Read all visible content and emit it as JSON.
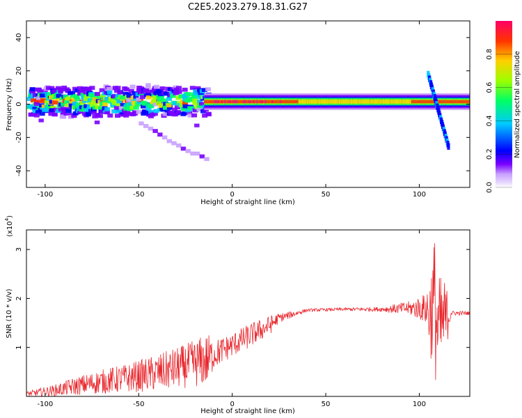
{
  "figure": {
    "title": "C2E5.2023.279.18.31.G27"
  },
  "chart_data": [
    {
      "type": "heatmap",
      "xlabel": "Height of straight line (km)",
      "ylabel": "Frequency (Hz)",
      "xlim": [
        -110,
        127
      ],
      "ylim": [
        -50,
        50
      ],
      "x_ticks": [
        -100,
        -50,
        0,
        50,
        100
      ],
      "y_ticks": [
        -40,
        -20,
        0,
        20,
        40
      ],
      "colorbar": {
        "label": "Normalized spectral amplitude",
        "range": [
          0,
          1
        ],
        "ticks": [
          "0.0",
          "0.2",
          "0.4",
          "0.6",
          "0.8"
        ],
        "colormap": [
          "#ffffff",
          "#c8a0ff",
          "#7a00ff",
          "#0000ff",
          "#00c8ff",
          "#00ff66",
          "#9bff00",
          "#ffd000",
          "#ff3300",
          "#ff0066"
        ]
      },
      "ridge_center_freq_hz": 1.5,
      "features": [
        {
          "x_range": [
            -110,
            -15
          ],
          "freq_range": [
            -10,
            15
          ],
          "note": "scattered"
        },
        {
          "x_range": [
            -15,
            127
          ],
          "freq_range": [
            -3,
            5
          ],
          "note": "coherent band"
        },
        {
          "x_range": [
            105,
            115
          ],
          "freq_range": [
            -25,
            18
          ],
          "note": "diagonal streak"
        },
        {
          "x_range": [
            -50,
            -15
          ],
          "freq_range": [
            -35,
            -10
          ],
          "note": "faint tail"
        }
      ]
    },
    {
      "type": "line",
      "xlabel": "Height of straight line (km)",
      "ylabel": "SNR (10 * v/v)",
      "y_multiplier": "(x10",
      "y_multiplier_exp": "4",
      "y_multiplier_close": ")",
      "xlim": [
        -110,
        127
      ],
      "ylim": [
        0,
        3.4
      ],
      "x_ticks": [
        -100,
        -50,
        0,
        50,
        100
      ],
      "y_ticks": [
        1,
        2,
        3
      ],
      "color": "#e8262c",
      "envelope": [
        {
          "x": -110,
          "mean": 0.05,
          "spread": 0.05
        },
        {
          "x": -95,
          "mean": 0.12,
          "spread": 0.12
        },
        {
          "x": -85,
          "mean": 0.2,
          "spread": 0.18
        },
        {
          "x": -70,
          "mean": 0.3,
          "spread": 0.25
        },
        {
          "x": -55,
          "mean": 0.38,
          "spread": 0.3
        },
        {
          "x": -40,
          "mean": 0.48,
          "spread": 0.38
        },
        {
          "x": -25,
          "mean": 0.62,
          "spread": 0.45
        },
        {
          "x": -13,
          "mean": 0.75,
          "spread": 0.55
        },
        {
          "x": -10,
          "mean": 0.85,
          "spread": 0.3
        },
        {
          "x": 0,
          "mean": 1.05,
          "spread": 0.25
        },
        {
          "x": 10,
          "mean": 1.25,
          "spread": 0.25
        },
        {
          "x": 20,
          "mean": 1.45,
          "spread": 0.2
        },
        {
          "x": 25,
          "mean": 1.6,
          "spread": 0.1
        },
        {
          "x": 40,
          "mean": 1.76,
          "spread": 0.03
        },
        {
          "x": 60,
          "mean": 1.78,
          "spread": 0.03
        },
        {
          "x": 80,
          "mean": 1.78,
          "spread": 0.05
        },
        {
          "x": 95,
          "mean": 1.8,
          "spread": 0.15
        },
        {
          "x": 103,
          "mean": 1.8,
          "spread": 0.3
        },
        {
          "x": 106,
          "mean": 1.7,
          "spread": 0.9
        },
        {
          "x": 108,
          "mean": 1.9,
          "spread": 1.5
        },
        {
          "x": 110,
          "mean": 1.3,
          "spread": 1.2
        },
        {
          "x": 114,
          "mean": 1.6,
          "spread": 0.8
        },
        {
          "x": 117,
          "mean": 1.7,
          "spread": 0.05
        },
        {
          "x": 127,
          "mean": 1.7,
          "spread": 0.04
        }
      ]
    }
  ]
}
